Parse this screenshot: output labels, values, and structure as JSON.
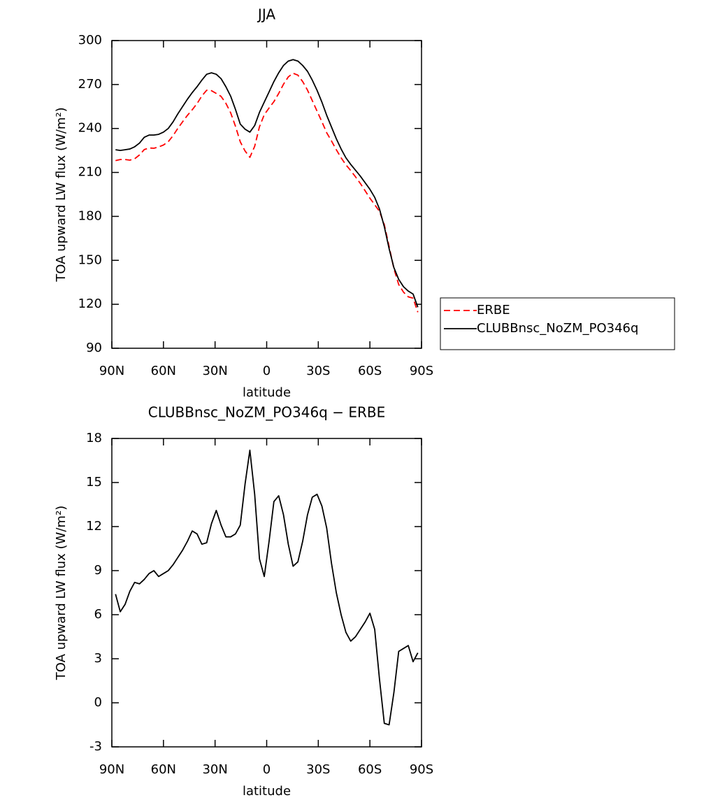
{
  "chart_data": [
    {
      "type": "line",
      "title": "JJA",
      "xlabel": "latitude",
      "ylabel": "TOA upward LW flux (W/m²)",
      "legend": "right",
      "xlim": [
        90,
        -90
      ],
      "xticks": [
        {
          "value": 90,
          "label": "90N"
        },
        {
          "value": 60,
          "label": "60N"
        },
        {
          "value": 30,
          "label": "30N"
        },
        0,
        {
          "value": -30,
          "label": "30S"
        },
        {
          "value": -60,
          "label": "60S"
        },
        {
          "value": -90,
          "label": "90S"
        }
      ],
      "ylim": [
        90,
        300
      ],
      "yticks": [
        90,
        120,
        150,
        180,
        210,
        240,
        270,
        300
      ],
      "x": [
        87.86,
        85.1,
        82.31,
        79.53,
        76.74,
        73.95,
        71.16,
        68.37,
        65.58,
        62.79,
        60.0,
        57.21,
        54.42,
        51.63,
        48.84,
        46.05,
        43.26,
        40.47,
        37.67,
        34.88,
        32.09,
        29.3,
        26.51,
        23.72,
        20.93,
        18.14,
        15.35,
        12.56,
        9.77,
        6.98,
        4.19,
        1.4,
        -1.4,
        -4.19,
        -6.98,
        -9.77,
        -12.56,
        -15.35,
        -18.14,
        -20.93,
        -23.72,
        -26.51,
        -29.3,
        -32.09,
        -34.88,
        -37.67,
        -40.47,
        -43.26,
        -46.05,
        -48.84,
        -51.63,
        -54.42,
        -57.21,
        -60.0,
        -62.79,
        -65.58,
        -68.37,
        -71.16,
        -73.95,
        -76.74,
        -79.53,
        -82.31,
        -85.1,
        -87.86
      ],
      "series": [
        {
          "name": "ERBE",
          "color": "#ff0000",
          "linestyle": "dashed",
          "values": [
            218.1,
            218.8,
            218.8,
            218.4,
            219.3,
            221.9,
            225.6,
            226.7,
            226.5,
            227.4,
            228.7,
            231.0,
            235.1,
            240.1,
            244.6,
            249.0,
            252.8,
            257.0,
            262.2,
            266.1,
            265.8,
            263.9,
            261.9,
            257.2,
            250.7,
            241.5,
            230.9,
            224.6,
            220.3,
            227.8,
            241.2,
            249.4,
            254.0,
            258.3,
            263.9,
            270.2,
            275.2,
            277.7,
            276.4,
            272.0,
            266.2,
            259.0,
            251.8,
            244.6,
            237.1,
            231.5,
            225.5,
            220.0,
            215.2,
            211.3,
            207.0,
            202.5,
            197.5,
            192.4,
            188.0,
            183.4,
            174.4,
            159.5,
            144.3,
            133.5,
            128.3,
            125.1,
            124.2,
            114.6
          ]
        },
        {
          "name": "CLUBBnsc_NoZM_PO346q",
          "color": "#000000",
          "linestyle": "solid",
          "values": [
            225.5,
            225,
            225.5,
            226,
            227.5,
            230,
            234,
            235.5,
            235.5,
            236,
            237.5,
            240,
            244.5,
            250,
            255,
            260,
            264.5,
            268.5,
            273,
            277,
            278,
            277,
            274,
            268.5,
            262,
            253,
            243,
            239.5,
            237.5,
            242,
            251,
            258,
            265,
            272,
            278,
            283,
            286,
            287,
            286,
            283,
            279,
            273,
            266,
            258,
            249,
            241,
            233,
            226,
            220,
            215.5,
            211.5,
            207.5,
            203,
            198.5,
            193,
            185,
            173,
            158,
            145,
            137,
            132,
            129,
            127,
            118
          ]
        }
      ]
    },
    {
      "type": "line",
      "title": "CLUBBnsc_NoZM_PO346q − ERBE",
      "xlabel": "latitude",
      "ylabel": "TOA upward LW flux (W/m²)",
      "xlim": [
        90,
        -90
      ],
      "xticks": [
        {
          "value": 90,
          "label": "90N"
        },
        {
          "value": 60,
          "label": "60N"
        },
        {
          "value": 30,
          "label": "30N"
        },
        0,
        {
          "value": -30,
          "label": "30S"
        },
        {
          "value": -60,
          "label": "60S"
        },
        {
          "value": -90,
          "label": "90S"
        }
      ],
      "ylim": [
        -3,
        18
      ],
      "yticks": [
        -3,
        0,
        3,
        6,
        9,
        12,
        15,
        18
      ],
      "x": [
        87.86,
        85.1,
        82.31,
        79.53,
        76.74,
        73.95,
        71.16,
        68.37,
        65.58,
        62.79,
        60.0,
        57.21,
        54.42,
        51.63,
        48.84,
        46.05,
        43.26,
        40.47,
        37.67,
        34.88,
        32.09,
        29.3,
        26.51,
        23.72,
        20.93,
        18.14,
        15.35,
        12.56,
        9.77,
        6.98,
        4.19,
        1.4,
        -1.4,
        -4.19,
        -6.98,
        -9.77,
        -12.56,
        -15.35,
        -18.14,
        -20.93,
        -23.72,
        -26.51,
        -29.3,
        -32.09,
        -34.88,
        -37.67,
        -40.47,
        -43.26,
        -46.05,
        -48.84,
        -51.63,
        -54.42,
        -57.21,
        -60.0,
        -62.79,
        -65.58,
        -68.37,
        -71.16,
        -73.95,
        -76.74,
        -79.53,
        -82.31,
        -85.1,
        -87.86
      ],
      "series": [
        {
          "color": "#000000",
          "linestyle": "solid",
          "values": [
            7.4,
            6.2,
            6.7,
            7.6,
            8.2,
            8.1,
            8.4,
            8.8,
            9.0,
            8.6,
            8.8,
            9.0,
            9.4,
            9.9,
            10.4,
            11.0,
            11.7,
            11.5,
            10.8,
            10.9,
            12.2,
            13.1,
            12.1,
            11.3,
            11.3,
            11.5,
            12.1,
            14.9,
            17.2,
            14.2,
            9.8,
            8.6,
            11.0,
            13.7,
            14.1,
            12.8,
            10.8,
            9.3,
            9.6,
            11.0,
            12.8,
            14.0,
            14.2,
            13.4,
            11.9,
            9.5,
            7.5,
            6.0,
            4.8,
            4.2,
            4.5,
            5.0,
            5.5,
            6.1,
            5.0,
            1.6,
            -1.4,
            -1.5,
            0.7,
            3.5,
            3.7,
            3.9,
            2.8,
            3.4
          ]
        }
      ]
    }
  ]
}
